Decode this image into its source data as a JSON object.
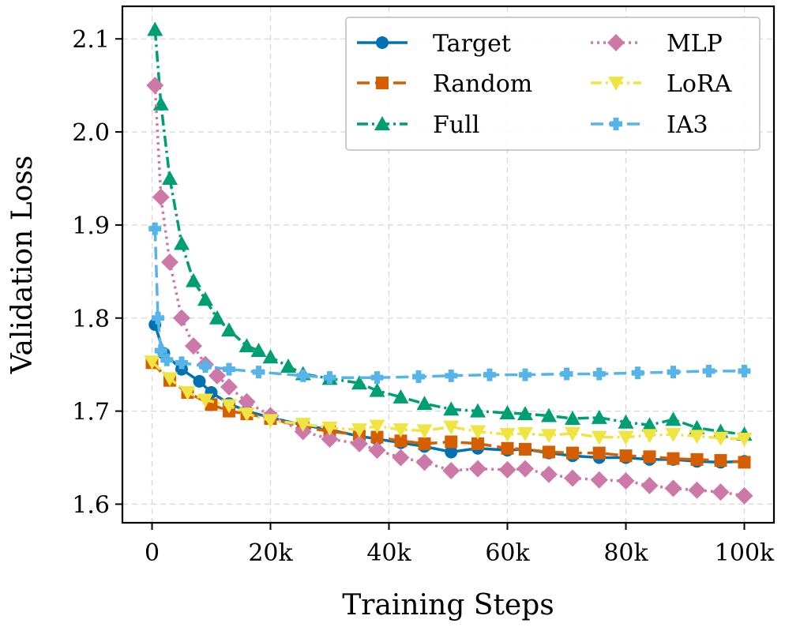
{
  "chart_data": {
    "type": "line",
    "title": "",
    "xlabel": "Training Steps",
    "ylabel": "Validation Loss",
    "xlim": [
      -5000,
      105000
    ],
    "ylim": [
      1.58,
      2.135
    ],
    "x_ticks": [
      0,
      20000,
      40000,
      60000,
      80000,
      100000
    ],
    "x_tick_labels": [
      "0",
      "20k",
      "40k",
      "60k",
      "80k",
      "100k"
    ],
    "y_ticks": [
      1.6,
      1.7,
      1.8,
      1.9,
      2.0,
      2.1
    ],
    "y_tick_labels": [
      "1.6",
      "1.7",
      "1.8",
      "1.9",
      "2.0",
      "2.1"
    ],
    "grid": true,
    "legend_position": "top-right",
    "series": [
      {
        "name": "Target",
        "color": "#0072b2",
        "dash": "solid",
        "marker": "circle",
        "x": [
          500,
          2000,
          5000,
          8000,
          10000,
          13000,
          16000,
          20000,
          25500,
          30000,
          35000,
          38000,
          42000,
          46000,
          50500,
          55000,
          60000,
          63000,
          67000,
          71000,
          75500,
          80000,
          84000,
          88000,
          92000,
          96000,
          100000
        ],
        "y": [
          1.793,
          1.762,
          1.745,
          1.732,
          1.72,
          1.708,
          1.7,
          1.693,
          1.685,
          1.68,
          1.673,
          1.67,
          1.666,
          1.662,
          1.656,
          1.66,
          1.658,
          1.659,
          1.655,
          1.652,
          1.65,
          1.65,
          1.648,
          1.648,
          1.646,
          1.645,
          1.646
        ]
      },
      {
        "name": "Random",
        "color": "#d55e00",
        "dash": "dashed",
        "marker": "square",
        "x": [
          0,
          3000,
          6000,
          10000,
          13000,
          16000,
          20000,
          25500,
          30000,
          35000,
          38000,
          42000,
          46000,
          50500,
          55000,
          60000,
          63000,
          67000,
          71000,
          75500,
          80000,
          84000,
          88000,
          92000,
          96000,
          100000
        ],
        "y": [
          1.752,
          1.733,
          1.72,
          1.707,
          1.7,
          1.697,
          1.692,
          1.683,
          1.678,
          1.675,
          1.672,
          1.668,
          1.665,
          1.667,
          1.665,
          1.66,
          1.659,
          1.656,
          1.655,
          1.655,
          1.652,
          1.651,
          1.649,
          1.648,
          1.647,
          1.645
        ]
      },
      {
        "name": "Full",
        "color": "#009e73",
        "dash": "dashdot",
        "marker": "triangle-up",
        "x": [
          500,
          1500,
          3000,
          5000,
          7000,
          9000,
          11000,
          13000,
          16000,
          18000,
          20000,
          23000,
          25500,
          30000,
          35000,
          38000,
          42000,
          46000,
          50500,
          55000,
          60000,
          63000,
          67000,
          71000,
          75500,
          80000,
          84000,
          88000,
          92000,
          96000,
          100000
        ],
        "y": [
          2.11,
          2.03,
          1.95,
          1.88,
          1.84,
          1.82,
          1.8,
          1.787,
          1.77,
          1.765,
          1.758,
          1.748,
          1.74,
          1.735,
          1.73,
          1.722,
          1.715,
          1.708,
          1.702,
          1.7,
          1.698,
          1.697,
          1.695,
          1.692,
          1.693,
          1.688,
          1.685,
          1.691,
          1.682,
          1.678,
          1.675
        ]
      },
      {
        "name": "MLP",
        "color": "#cc79a7",
        "dash": "dotted",
        "marker": "diamond",
        "x": [
          500,
          1500,
          3000,
          5000,
          7000,
          9000,
          11000,
          13000,
          16000,
          20000,
          25500,
          30000,
          35000,
          38000,
          42000,
          46000,
          50500,
          55000,
          60000,
          63000,
          67000,
          71000,
          75500,
          80000,
          84000,
          88000,
          92000,
          96000,
          100000
        ],
        "y": [
          2.05,
          1.93,
          1.86,
          1.8,
          1.77,
          1.75,
          1.738,
          1.726,
          1.71,
          1.695,
          1.678,
          1.67,
          1.665,
          1.658,
          1.65,
          1.645,
          1.636,
          1.638,
          1.637,
          1.638,
          1.632,
          1.628,
          1.626,
          1.625,
          1.62,
          1.617,
          1.615,
          1.613,
          1.609
        ]
      },
      {
        "name": "LoRA",
        "color": "#f0e442",
        "dash": "dashdot",
        "marker": "triangle-down",
        "x": [
          0,
          3000,
          6000,
          9000,
          13000,
          16000,
          20000,
          25500,
          30000,
          35000,
          38000,
          42000,
          46000,
          50500,
          55000,
          60000,
          63000,
          67000,
          71000,
          75500,
          80000,
          84000,
          88000,
          92000,
          96000,
          100000
        ],
        "y": [
          1.753,
          1.735,
          1.72,
          1.712,
          1.706,
          1.697,
          1.69,
          1.686,
          1.682,
          1.68,
          1.684,
          1.68,
          1.679,
          1.683,
          1.678,
          1.675,
          1.676,
          1.674,
          1.676,
          1.672,
          1.672,
          1.674,
          1.675,
          1.673,
          1.671,
          1.67
        ]
      },
      {
        "name": "IA3",
        "color": "#56b4e9",
        "dash": "dashed",
        "marker": "plus-square",
        "x": [
          500,
          1000,
          1500,
          2500,
          5000,
          9000,
          13000,
          18000,
          25500,
          30000,
          38000,
          45000,
          50500,
          57000,
          63000,
          70000,
          75500,
          82000,
          88000,
          94000,
          100000
        ],
        "y": [
          1.896,
          1.8,
          1.765,
          1.755,
          1.752,
          1.748,
          1.745,
          1.742,
          1.738,
          1.736,
          1.736,
          1.737,
          1.738,
          1.739,
          1.739,
          1.74,
          1.74,
          1.741,
          1.742,
          1.743,
          1.743
        ]
      }
    ]
  }
}
